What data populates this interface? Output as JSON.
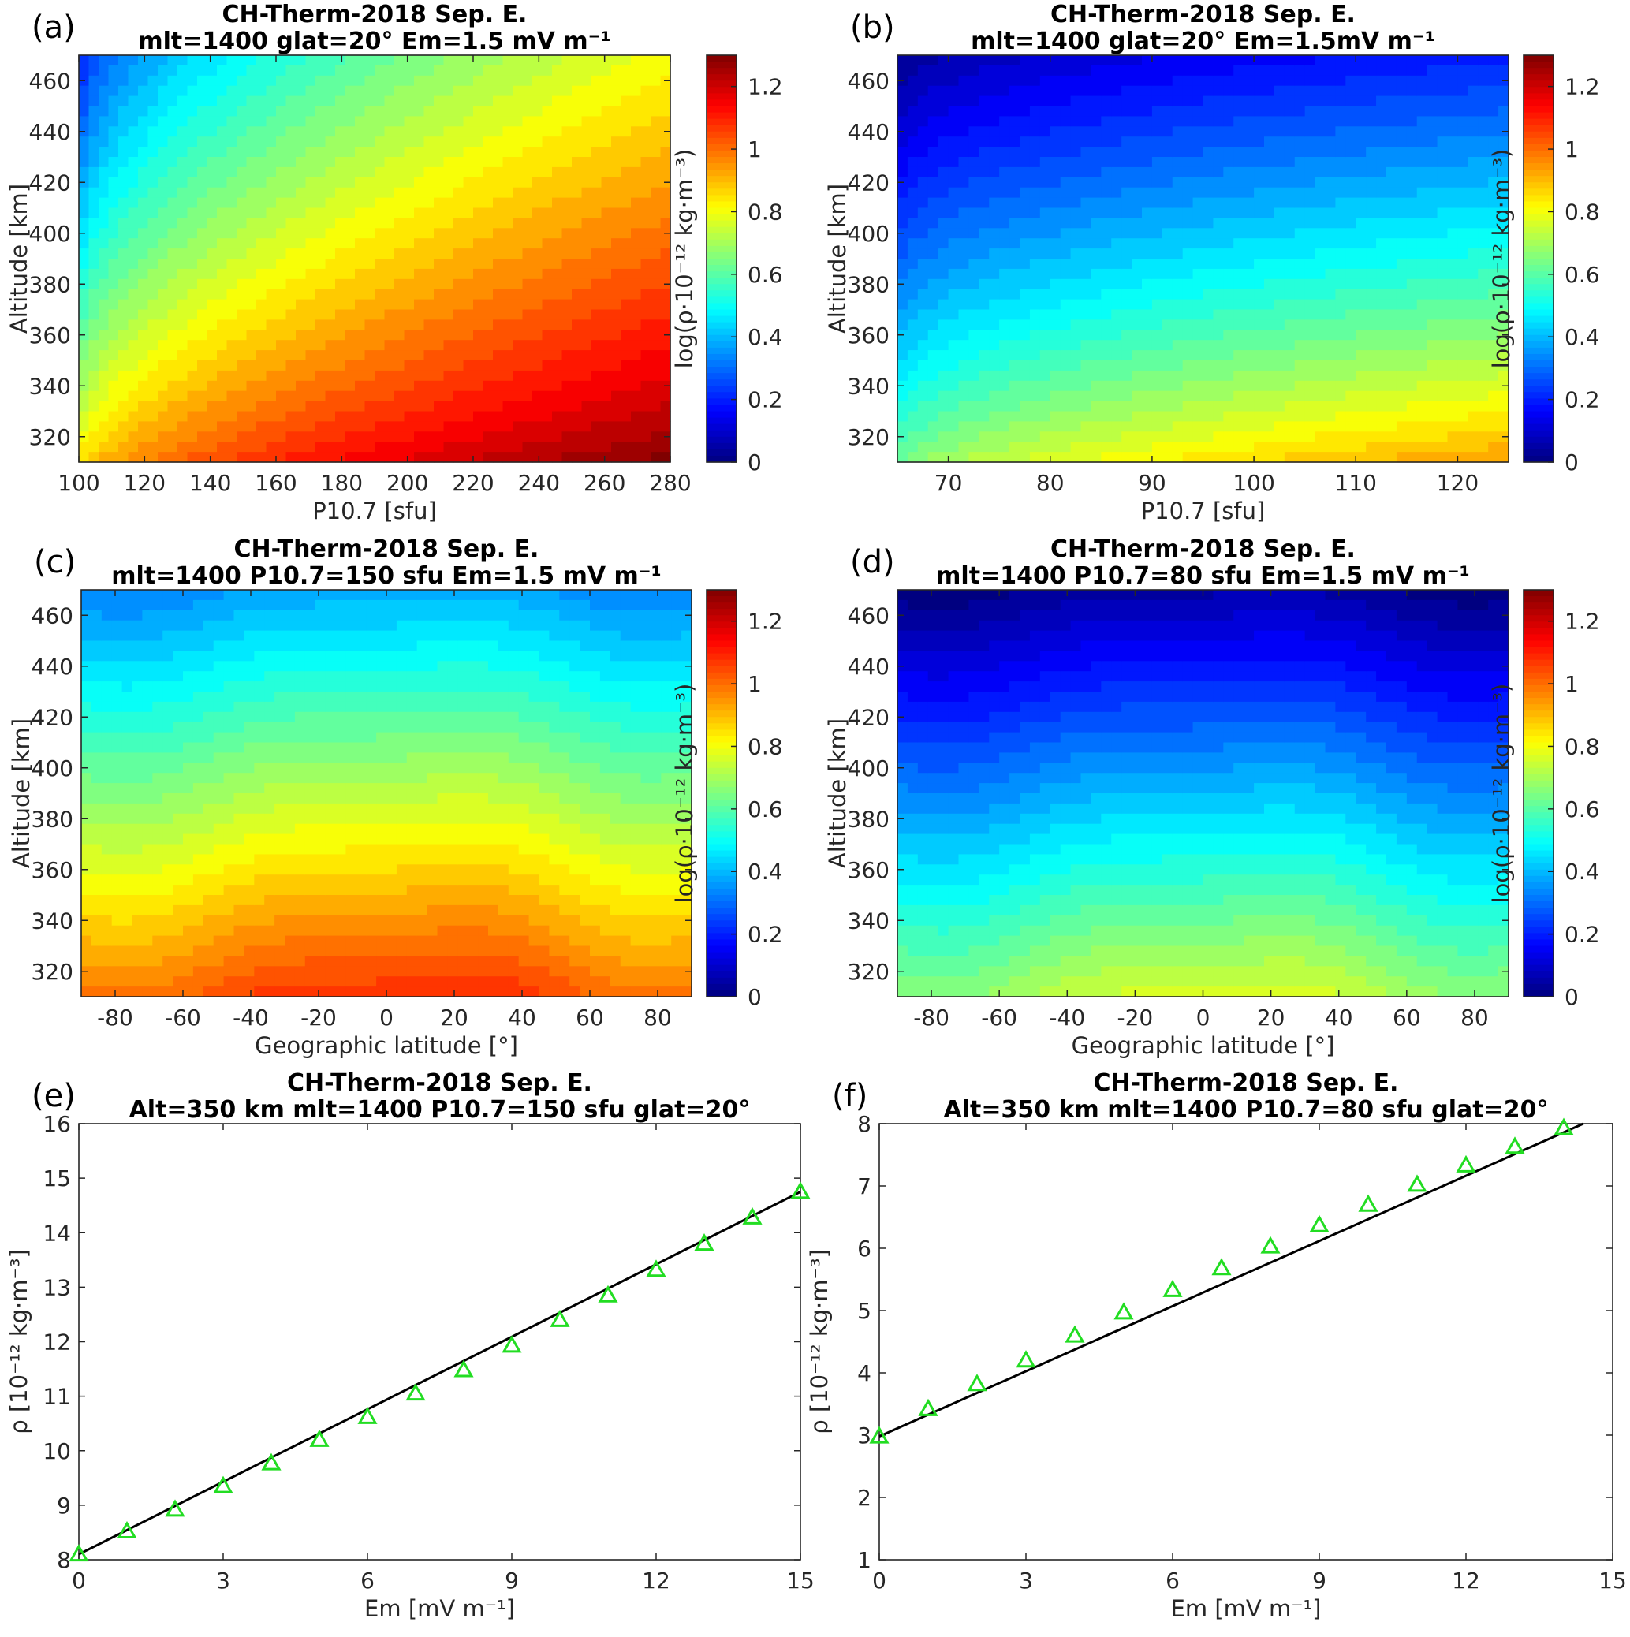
{
  "figure": {
    "panels": [
      "a",
      "b",
      "c",
      "d",
      "e",
      "f"
    ]
  },
  "chart_data": [
    {
      "id": "a",
      "type": "heatmap",
      "panel_label": "(a)",
      "title_line1": "CH-Therm-2018     Sep. E.",
      "title_line2": "mlt=1400   glat=20°    Em=1.5 mV m⁻¹",
      "xlabel": "P10.7 [sfu]",
      "ylabel": "Altitude [km]",
      "colorbar_label": "log(ρ·10⁻¹² kg·m⁻³)",
      "xlim": [
        100,
        280
      ],
      "ylim": [
        310,
        470
      ],
      "clim": [
        0,
        1.3
      ],
      "xticks": [
        100,
        120,
        140,
        160,
        180,
        200,
        220,
        240,
        260,
        280
      ],
      "yticks": [
        320,
        340,
        360,
        380,
        400,
        420,
        440,
        460
      ],
      "cticks": [
        0,
        0.2,
        0.4,
        0.6,
        0.8,
        1,
        1.2
      ],
      "corner_values": {
        "x_min_y_min": 0.82,
        "x_max_y_min": 1.3,
        "x_min_y_max": 0.15,
        "x_max_y_max": 0.8
      }
    },
    {
      "id": "b",
      "type": "heatmap",
      "panel_label": "(b)",
      "title_line1": "CH-Therm-2018     Sep. E.",
      "title_line2": "mlt=1400   glat=20°    Em=1.5mV m⁻¹",
      "xlabel": "P10.7 [sfu]",
      "ylabel": "Altitude [km]",
      "colorbar_label": "log(ρ·10⁻¹² kg·m⁻³)",
      "xlim": [
        65,
        125
      ],
      "ylim": [
        310,
        470
      ],
      "clim": [
        0,
        1.3
      ],
      "xticks": [
        70,
        80,
        90,
        100,
        110,
        120
      ],
      "yticks": [
        320,
        340,
        360,
        380,
        400,
        420,
        440,
        460
      ],
      "cticks": [
        0,
        0.2,
        0.4,
        0.6,
        0.8,
        1,
        1.2
      ],
      "corner_values": {
        "x_min_y_min": 0.6,
        "x_max_y_min": 0.95,
        "x_min_y_max": 0.0,
        "x_max_y_max": 0.2
      }
    },
    {
      "id": "c",
      "type": "heatmap",
      "panel_label": "(c)",
      "title_line1": "CH-Therm-2018     Sep. E.",
      "title_line2": "mlt=1400    P10.7=150 sfu   Em=1.5  mV m⁻¹",
      "xlabel": "Geographic latitude [°]",
      "ylabel": "Altitude [km]",
      "colorbar_label": "log(ρ·10⁻¹² kg·m⁻³)",
      "xlim": [
        -90,
        90
      ],
      "ylim": [
        310,
        470
      ],
      "clim": [
        0,
        1.3
      ],
      "xticks": [
        -80,
        -60,
        -40,
        -20,
        0,
        20,
        40,
        60,
        80
      ],
      "yticks": [
        320,
        340,
        360,
        380,
        400,
        420,
        440,
        460
      ],
      "cticks": [
        0,
        0.2,
        0.4,
        0.6,
        0.8,
        1,
        1.2
      ],
      "profile": {
        "bottom_value": 1.0,
        "top_value": 0.33,
        "equator_bulge": 0.1
      }
    },
    {
      "id": "d",
      "type": "heatmap",
      "panel_label": "(d)",
      "title_line1": "CH-Therm-2018     Sep. E.",
      "title_line2": "mlt=1400     P10.7=80 sfu    Em=1.5 mV m⁻¹",
      "xlabel": "Geographic latitude [°]",
      "ylabel": "Altitude [km]",
      "colorbar_label": "log(ρ·10⁻¹² kg·m⁻³)",
      "xlim": [
        -90,
        90
      ],
      "ylim": [
        310,
        470
      ],
      "clim": [
        0,
        1.3
      ],
      "xticks": [
        -80,
        -60,
        -40,
        -20,
        0,
        20,
        40,
        60,
        80
      ],
      "yticks": [
        320,
        340,
        360,
        380,
        400,
        420,
        440,
        460
      ],
      "cticks": [
        0,
        0.2,
        0.4,
        0.6,
        0.8,
        1,
        1.2
      ],
      "profile": {
        "bottom_value": 0.68,
        "top_value": 0.0,
        "equator_bulge": 0.1
      }
    },
    {
      "id": "e",
      "type": "line",
      "panel_label": "(e)",
      "title_line1": "CH-Therm-2018     Sep. E.",
      "title_line2": "Alt=350 km   mlt=1400    P10.7=150 sfu    glat=20°",
      "xlabel": "Em [mV m⁻¹]",
      "ylabel": "ρ [10⁻¹² kg·m⁻³]",
      "xlim": [
        0,
        15
      ],
      "ylim": [
        8,
        16
      ],
      "xticks": [
        0,
        3,
        6,
        9,
        12,
        15
      ],
      "yticks": [
        8,
        9,
        10,
        11,
        12,
        13,
        14,
        15,
        16
      ],
      "line_series": {
        "name": "model",
        "x": [
          0,
          15
        ],
        "y": [
          8.1,
          14.75
        ]
      },
      "marker_series": {
        "name": "points",
        "x": [
          0,
          1,
          2,
          3,
          4,
          5,
          6,
          7,
          8,
          9,
          10,
          11,
          12,
          13,
          14,
          15
        ],
        "y": [
          8.1,
          8.52,
          8.92,
          9.35,
          9.77,
          10.2,
          10.62,
          11.05,
          11.48,
          11.93,
          12.4,
          12.85,
          13.32,
          13.8,
          14.28,
          14.75
        ]
      }
    },
    {
      "id": "f",
      "type": "line",
      "panel_label": "(f)",
      "title_line1": "CH-Therm-2018     Sep. E.",
      "title_line2": "Alt=350 km   mlt=1400    P10.7=80 sfu    glat=20°",
      "xlabel": "Em [mV m⁻¹]",
      "ylabel": "ρ [10⁻¹² kg·m⁻³]",
      "xlim": [
        0,
        15
      ],
      "ylim": [
        1,
        8
      ],
      "xticks": [
        0,
        3,
        6,
        9,
        12,
        15
      ],
      "yticks": [
        1,
        2,
        3,
        4,
        5,
        6,
        7,
        8
      ],
      "line_series": {
        "name": "model",
        "x": [
          0,
          14.4
        ],
        "y": [
          2.98,
          8.0
        ]
      },
      "marker_series": {
        "name": "points",
        "x": [
          0,
          1,
          2,
          3,
          4,
          5,
          6,
          7,
          8,
          9,
          10,
          11,
          12,
          13,
          14
        ],
        "y": [
          2.98,
          3.42,
          3.82,
          4.2,
          4.6,
          4.97,
          5.33,
          5.68,
          6.03,
          6.37,
          6.7,
          7.02,
          7.33,
          7.63,
          7.93
        ]
      }
    }
  ]
}
